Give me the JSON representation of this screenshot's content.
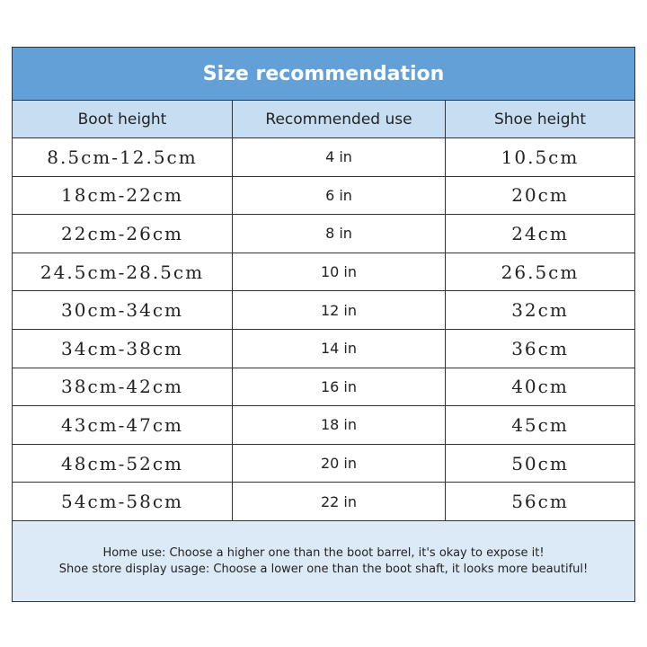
{
  "header": {
    "title": "Size recommendation"
  },
  "table": {
    "columns": [
      "Boot height",
      "Recommended use",
      "Shoe height"
    ],
    "rows": [
      [
        "8.5cm-12.5cm",
        "4 in",
        "10.5cm"
      ],
      [
        "18cm-22cm",
        "6 in",
        "20cm"
      ],
      [
        "22cm-26cm",
        "8 in",
        "24cm"
      ],
      [
        "24.5cm-28.5cm",
        "10 in",
        "26.5cm"
      ],
      [
        "30cm-34cm",
        "12 in",
        "32cm"
      ],
      [
        "34cm-38cm",
        "14 in",
        "36cm"
      ],
      [
        "38cm-42cm",
        "16 in",
        "40cm"
      ],
      [
        "43cm-47cm",
        "18 in",
        "45cm"
      ],
      [
        "48cm-52cm",
        "20 in",
        "50cm"
      ],
      [
        "54cm-58cm",
        "22 in",
        "56cm"
      ]
    ]
  },
  "notes": [
    "Home use: Choose a higher one than the boot barrel, it's okay to expose it!",
    "Shoe store display usage: Choose a lower one than the boot shaft, it looks more beautiful!"
  ]
}
